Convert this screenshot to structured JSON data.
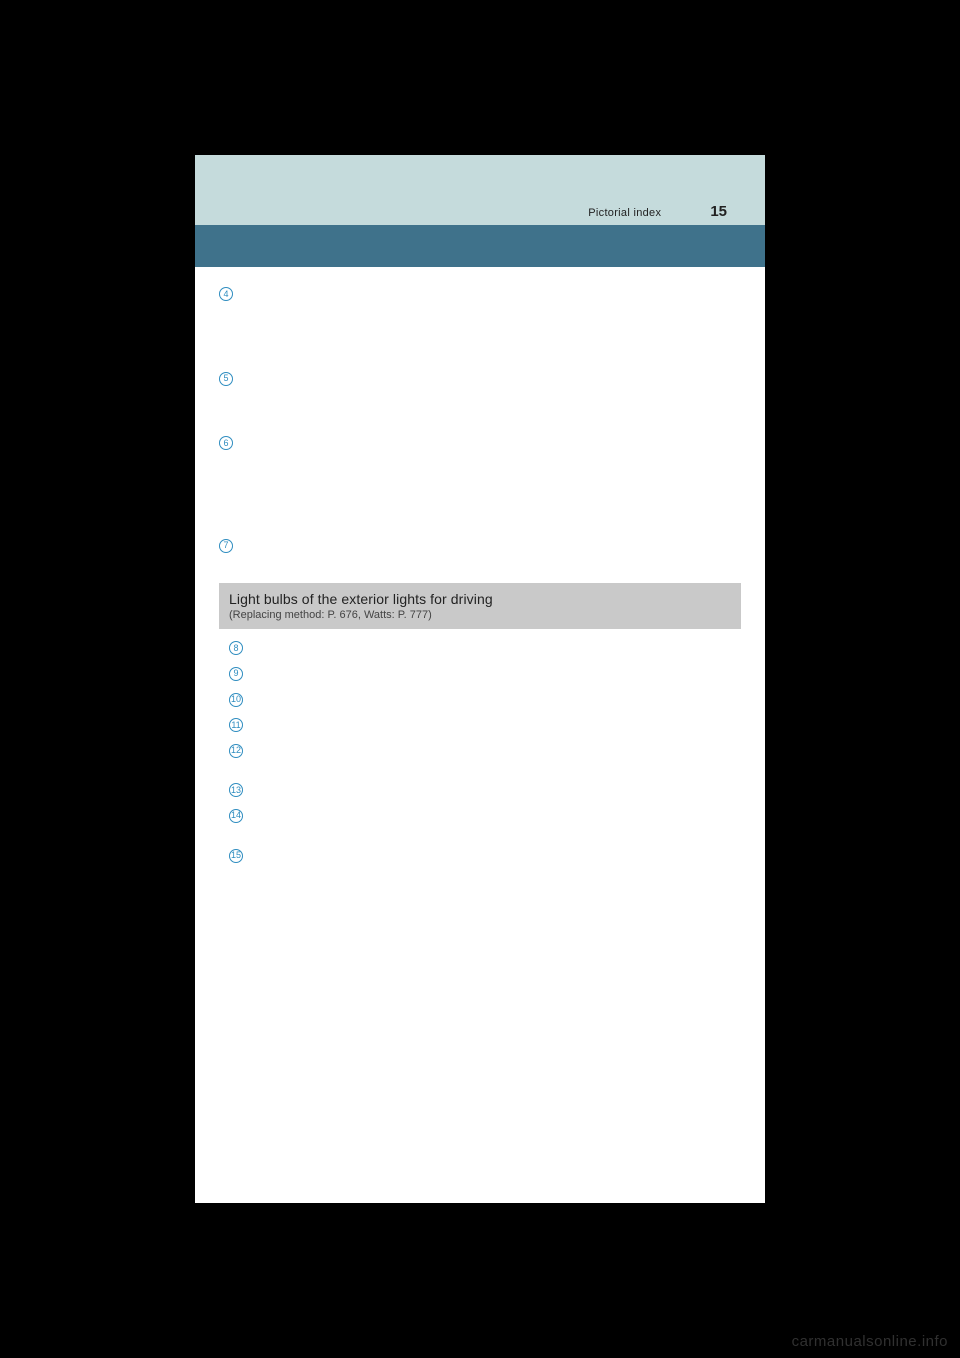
{
  "header": {
    "section_label": "Pictorial index",
    "page_number": "15"
  },
  "top_entries": [
    {
      "num": "4",
      "spacing_after": 62
    },
    {
      "num": "5",
      "spacing_after": 42
    },
    {
      "num": "6",
      "spacing_after": 80
    },
    {
      "num": "7",
      "spacing_after": 0
    }
  ],
  "section": {
    "title": "Light bulbs of the exterior lights for driving",
    "subtitle": "(Replacing method: P. 676, Watts: P. 777)"
  },
  "light_entries": [
    {
      "num": "8",
      "gap_after": 0
    },
    {
      "num": "9",
      "gap_after": 0
    },
    {
      "num": "10",
      "gap_after": 0
    },
    {
      "num": "11",
      "gap_after": 0
    },
    {
      "num": "12",
      "gap_after": 14
    },
    {
      "num": "13",
      "gap_after": 0
    },
    {
      "num": "14",
      "gap_after": 14
    },
    {
      "num": "15",
      "gap_after": 0
    }
  ],
  "watermark": "carmanualsonline.info",
  "colors": {
    "page_bg": "#ffffff",
    "body_bg": "#000000",
    "header_light": "#c5dbdc",
    "header_dark": "#3f728b",
    "section_box": "#c9c9c9",
    "circle_stroke": "#2f8dc0",
    "watermark_color": "#4a4a4a"
  }
}
